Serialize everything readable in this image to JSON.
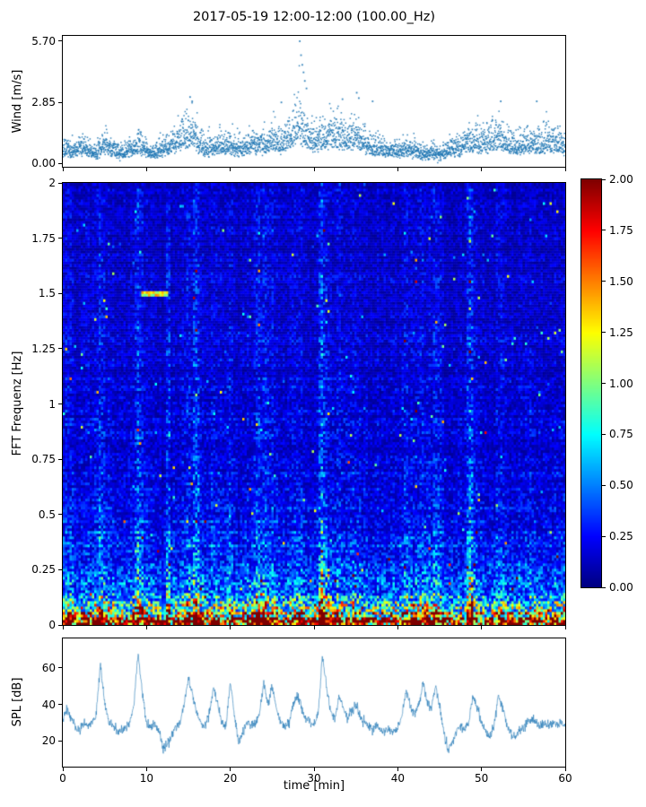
{
  "title": "2017-05-19 12:00-12:00 (100.00_Hz)",
  "panels": {
    "wind": {
      "ylabel": "Wind [m/s]",
      "yticks": [
        "0.00",
        "2.85",
        "5.70"
      ],
      "ytick_values": [
        0,
        2.85,
        5.7
      ],
      "ylim": [
        -0.15,
        5.95
      ]
    },
    "spectrogram": {
      "ylabel": "FFT Frequenz [Hz]",
      "yticks": [
        "0",
        "0.25",
        "0.5",
        "0.75",
        "1",
        "1.25",
        "1.5",
        "1.75",
        "2"
      ],
      "ytick_values": [
        0,
        0.25,
        0.5,
        0.75,
        1,
        1.25,
        1.5,
        1.75,
        2
      ],
      "ylim": [
        0,
        2
      ]
    },
    "colorbar": {
      "ticks": [
        "0.00",
        "0.25",
        "0.50",
        "0.75",
        "1.00",
        "1.25",
        "1.50",
        "1.75",
        "2.00"
      ],
      "tick_values": [
        0,
        0.25,
        0.5,
        0.75,
        1,
        1.25,
        1.5,
        1.75,
        2
      ],
      "lim": [
        0,
        2
      ],
      "colormap": "jet"
    },
    "spl": {
      "ylabel": "SPL [dB]",
      "yticks": [
        "20",
        "40",
        "60"
      ],
      "ytick_values": [
        20,
        40,
        60
      ],
      "ylim": [
        6,
        76
      ]
    },
    "x": {
      "label": "time [min]",
      "ticks": [
        "0",
        "10",
        "20",
        "30",
        "40",
        "50",
        "60"
      ],
      "tick_values": [
        0,
        10,
        20,
        30,
        40,
        50,
        60
      ],
      "lim": [
        0,
        60
      ]
    }
  },
  "chart_data": [
    {
      "type": "scatter",
      "name": "wind-speed",
      "ylabel": "Wind [m/s]",
      "xlabel": "time [min]",
      "xlim": [
        0,
        60
      ],
      "ylim": [
        -0.15,
        5.95
      ],
      "ytick_values": [
        0,
        2.85,
        5.7
      ],
      "marker_color": "#1f77b4",
      "points_per_minute": 60,
      "mean_values": [
        0.9,
        0.7,
        1.0,
        0.8,
        0.6,
        1.2,
        0.8,
        0.6,
        0.9,
        1.1,
        0.8,
        0.7,
        1.0,
        1.2,
        1.6,
        1.8,
        1.3,
        0.9,
        1.0,
        1.1,
        1.2,
        0.9,
        1.0,
        1.3,
        1.1,
        1.4,
        1.2,
        1.6,
        2.2,
        1.8,
        1.3,
        1.5,
        1.8,
        1.6,
        1.4,
        1.7,
        1.3,
        1.0,
        0.9,
        0.8,
        0.7,
        0.9,
        0.8,
        0.6,
        0.7,
        0.6,
        0.8,
        0.9,
        1.1,
        1.3,
        1.2,
        1.4,
        1.6,
        1.2,
        1.0,
        1.2,
        1.4,
        1.1,
        1.3,
        1.2,
        1.0
      ],
      "peak_points": [
        [
          28.3,
          5.7
        ],
        [
          28.45,
          5.05
        ],
        [
          28.6,
          4.6
        ],
        [
          28.75,
          4.25
        ],
        [
          28.9,
          3.85
        ],
        [
          29.1,
          3.5
        ],
        [
          15.2,
          3.1
        ],
        [
          15.45,
          2.9
        ],
        [
          26.1,
          2.85
        ],
        [
          33.4,
          3.0
        ],
        [
          35.1,
          3.3
        ],
        [
          35.35,
          3.05
        ],
        [
          37.0,
          2.9
        ],
        [
          52.3,
          2.9
        ],
        [
          56.6,
          2.9
        ]
      ]
    },
    {
      "type": "heatmap",
      "name": "fft-spectrogram",
      "ylabel": "FFT Frequenz [Hz]",
      "xlim": [
        0,
        60
      ],
      "ylim": [
        0,
        2
      ],
      "zlim": [
        0,
        2
      ],
      "colormap": "jet",
      "freq_intensity_profile": [
        [
          0,
          2.6
        ],
        [
          0.02,
          2.4
        ],
        [
          0.04,
          1.7
        ],
        [
          0.07,
          1.15
        ],
        [
          0.1,
          0.9
        ],
        [
          0.15,
          0.65
        ],
        [
          0.22,
          0.5
        ],
        [
          0.3,
          0.4
        ],
        [
          0.5,
          0.3
        ],
        [
          0.8,
          0.24
        ],
        [
          1.2,
          0.21
        ],
        [
          1.6,
          0.19
        ],
        [
          2,
          0.18
        ]
      ],
      "time_modulation_source": "spl-series",
      "bright_columns": [
        {
          "t": 12.6,
          "boost": 1.8
        },
        {
          "t": 16.0,
          "boost": 1.5
        },
        {
          "t": 23.2,
          "boost": 1.35
        },
        {
          "t": 30.8,
          "boost": 1.5
        },
        {
          "t": 48.6,
          "boost": 1.8
        }
      ],
      "h_streaks": [
        {
          "freq_hz": 1.5,
          "t_start": 9.5,
          "t_end": 12.5,
          "value": 1.15
        }
      ]
    },
    {
      "type": "line",
      "name": "spl",
      "ylabel": "SPL [dB]",
      "xlabel": "time [min]",
      "xlim": [
        0,
        60
      ],
      "ylim": [
        6,
        76
      ],
      "ytick_values": [
        20,
        40,
        60
      ],
      "color": "#1f77b4",
      "x_step_minutes": 0.5,
      "values": [
        30,
        38,
        32,
        28,
        26,
        30,
        28,
        30,
        35,
        62,
        40,
        30,
        28,
        26,
        25,
        27,
        30,
        40,
        68,
        45,
        30,
        28,
        30,
        25,
        16,
        18,
        22,
        28,
        30,
        40,
        55,
        45,
        35,
        30,
        28,
        35,
        50,
        40,
        30,
        28,
        52,
        35,
        18,
        25,
        30,
        28,
        30,
        35,
        52,
        40,
        50,
        38,
        30,
        28,
        30,
        40,
        45,
        38,
        32,
        30,
        28,
        35,
        67,
        50,
        36,
        32,
        45,
        38,
        32,
        36,
        40,
        34,
        30,
        28,
        26,
        28,
        26,
        25,
        26,
        25,
        27,
        35,
        48,
        38,
        35,
        40,
        52,
        42,
        38,
        50,
        40,
        25,
        15,
        20,
        25,
        28,
        26,
        30,
        45,
        38,
        30,
        25,
        22,
        28,
        45,
        38,
        30,
        24,
        22,
        26,
        28,
        30,
        32,
        30,
        28,
        30,
        28,
        30,
        29,
        30,
        28
      ]
    }
  ]
}
